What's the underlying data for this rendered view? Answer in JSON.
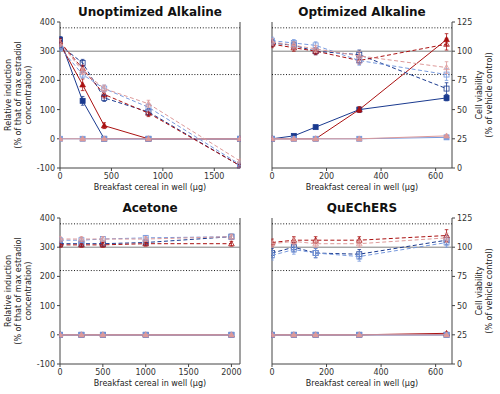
{
  "chart_data": [
    {
      "type": "line",
      "title": "Unoptimized Alkaline",
      "xlabel": "Breakfast cereal in well (μg)",
      "ylabel": "Relative induction\n(% of that of max estradiol concentration)",
      "x": [
        0,
        220,
        430,
        860,
        1750
      ],
      "xlim": [
        0,
        1750
      ],
      "xticks": [
        0,
        500,
        1000,
        1500
      ],
      "ylim": [
        -100,
        400
      ],
      "yticks": [
        -100,
        0,
        100,
        200,
        300,
        400
      ],
      "y2lim": [
        0,
        125
      ],
      "reference_lines": [
        {
          "value": 100,
          "axis": "y2",
          "line_style": "solid",
          "color": "gray"
        },
        {
          "value": 120,
          "axis": "y2",
          "line_style": "dotted",
          "color": "black"
        },
        {
          "value": 80,
          "axis": "y2",
          "line_style": "dotted",
          "color": "black"
        }
      ],
      "series": [
        {
          "color": "#1a3a8f",
          "marker": "square",
          "line_style": "solid",
          "values": [
            340,
            130,
            0,
            0,
            0
          ],
          "errors": [
            10,
            15,
            2,
            1,
            1
          ]
        },
        {
          "color": "#aa1111",
          "marker": "triangle",
          "line_style": "solid",
          "values": [
            325,
            185,
            45,
            0,
            0
          ],
          "errors": [
            10,
            20,
            10,
            1,
            1
          ]
        },
        {
          "color": "#7799dd",
          "marker": "square",
          "line_style": "solid",
          "values": [
            0,
            0,
            0,
            0,
            0
          ],
          "errors": [
            1,
            1,
            1,
            1,
            1
          ]
        },
        {
          "color": "#dd9999",
          "marker": "triangle",
          "line_style": "solid",
          "values": [
            0,
            0,
            0,
            0,
            0
          ],
          "errors": [
            1,
            1,
            1,
            1,
            1
          ]
        },
        {
          "color": "#1a3a8f",
          "marker": "open-square",
          "line_style": "dashed",
          "axis": "y2",
          "values": [
            105,
            90,
            60,
            48,
            2
          ],
          "errors": [
            3,
            3,
            3,
            3,
            1
          ]
        },
        {
          "color": "#aa1111",
          "marker": "open-triangle",
          "line_style": "dashed",
          "axis": "y2",
          "values": [
            108,
            85,
            63,
            47,
            2
          ],
          "errors": [
            3,
            3,
            3,
            3,
            1
          ]
        },
        {
          "color": "#7799dd",
          "marker": "open-square",
          "line_style": "dashed",
          "axis": "y2",
          "values": [
            103,
            80,
            68,
            52,
            3
          ],
          "errors": [
            3,
            3,
            3,
            3,
            1
          ]
        },
        {
          "color": "#dd9999",
          "marker": "open-triangle",
          "line_style": "dashed",
          "axis": "y2",
          "values": [
            107,
            83,
            68,
            55,
            6
          ],
          "errors": [
            3,
            3,
            3,
            3,
            1
          ]
        }
      ]
    },
    {
      "type": "line",
      "title": "Optimized Alkaline",
      "xlabel": "Breakfast cereal in well (μg)",
      "y2label": "Cell viability\n(% of vehicle control)",
      "x": [
        0,
        80,
        160,
        320,
        640
      ],
      "xlim": [
        0,
        660
      ],
      "xticks": [
        0,
        200,
        400,
        600
      ],
      "ylim": [
        -100,
        400
      ],
      "y2lim": [
        0,
        125
      ],
      "y2ticks": [
        0,
        25,
        50,
        75,
        100,
        125
      ],
      "reference_lines": [
        {
          "value": 100,
          "axis": "y2",
          "line_style": "solid",
          "color": "gray"
        },
        {
          "value": 120,
          "axis": "y2",
          "line_style": "dotted",
          "color": "black"
        },
        {
          "value": 80,
          "axis": "y2",
          "line_style": "dotted",
          "color": "black"
        }
      ],
      "series": [
        {
          "color": "#1a3a8f",
          "marker": "square",
          "line_style": "solid",
          "values": [
            0,
            10,
            40,
            100,
            140
          ],
          "errors": [
            1,
            3,
            5,
            8,
            10
          ]
        },
        {
          "color": "#aa1111",
          "marker": "triangle",
          "line_style": "solid",
          "values": [
            0,
            0,
            0,
            100,
            340
          ],
          "errors": [
            1,
            1,
            1,
            10,
            20
          ]
        },
        {
          "color": "#7799dd",
          "marker": "square",
          "line_style": "solid",
          "values": [
            0,
            0,
            0,
            0,
            5
          ],
          "errors": [
            1,
            1,
            1,
            1,
            2
          ]
        },
        {
          "color": "#dd9999",
          "marker": "triangle",
          "line_style": "solid",
          "values": [
            0,
            0,
            0,
            0,
            10
          ],
          "errors": [
            1,
            1,
            1,
            1,
            2
          ]
        },
        {
          "color": "#1a3a8f",
          "marker": "open-square",
          "line_style": "dashed",
          "axis": "y2",
          "values": [
            107,
            105,
            100,
            97,
            68
          ],
          "errors": [
            3,
            3,
            3,
            4,
            5
          ]
        },
        {
          "color": "#aa1111",
          "marker": "open-triangle",
          "line_style": "dashed",
          "axis": "y2",
          "values": [
            106,
            103,
            100,
            92,
            106
          ],
          "errors": [
            3,
            3,
            3,
            3,
            5
          ]
        },
        {
          "color": "#7799dd",
          "marker": "open-square",
          "line_style": "dashed",
          "axis": "y2",
          "values": [
            109,
            107,
            105,
            92,
            80
          ],
          "errors": [
            3,
            3,
            3,
            4,
            5
          ]
        },
        {
          "color": "#dd9999",
          "marker": "open-triangle",
          "line_style": "dashed",
          "axis": "y2",
          "values": [
            108,
            105,
            102,
            96,
            86
          ],
          "errors": [
            3,
            3,
            3,
            4,
            5
          ]
        }
      ]
    },
    {
      "type": "line",
      "title": "Acetone",
      "xlabel": "Breakfast cereal in well (μg)",
      "ylabel": "Relative induction\n(% of that of max estradiol concentration)",
      "x": [
        0,
        250,
        500,
        1000,
        2000
      ],
      "xlim": [
        0,
        2100
      ],
      "xticks": [
        0,
        500,
        1000,
        1500,
        2000
      ],
      "ylim": [
        -100,
        400
      ],
      "yticks": [
        -100,
        0,
        100,
        200,
        300,
        400
      ],
      "y2lim": [
        0,
        125
      ],
      "reference_lines": [
        {
          "value": 100,
          "axis": "y2",
          "line_style": "solid",
          "color": "gray"
        },
        {
          "value": 120,
          "axis": "y2",
          "line_style": "dotted",
          "color": "black"
        },
        {
          "value": 80,
          "axis": "y2",
          "line_style": "dotted",
          "color": "black"
        }
      ],
      "series": [
        {
          "color": "#1a3a8f",
          "marker": "square",
          "line_style": "solid",
          "values": [
            0,
            0,
            0,
            0,
            0
          ],
          "errors": [
            1,
            1,
            1,
            1,
            1
          ]
        },
        {
          "color": "#aa1111",
          "marker": "triangle",
          "line_style": "solid",
          "values": [
            0,
            0,
            0,
            0,
            0
          ],
          "errors": [
            1,
            1,
            1,
            1,
            1
          ]
        },
        {
          "color": "#7799dd",
          "marker": "square",
          "line_style": "solid",
          "values": [
            0,
            0,
            0,
            0,
            0
          ],
          "errors": [
            1,
            1,
            1,
            1,
            1
          ]
        },
        {
          "color": "#dd9999",
          "marker": "triangle",
          "line_style": "solid",
          "values": [
            0,
            0,
            0,
            0,
            0
          ],
          "errors": [
            1,
            1,
            1,
            1,
            1
          ]
        },
        {
          "color": "#1a3a8f",
          "marker": "open-square",
          "line_style": "dashed",
          "axis": "y2",
          "values": [
            103,
            103,
            103,
            104,
            109
          ],
          "errors": [
            2,
            2,
            2,
            2,
            2
          ]
        },
        {
          "color": "#aa1111",
          "marker": "open-triangle",
          "line_style": "dashed",
          "axis": "y2",
          "values": [
            102,
            102,
            102,
            103,
            103
          ],
          "errors": [
            2,
            2,
            2,
            2,
            2
          ]
        },
        {
          "color": "#7799dd",
          "marker": "open-square",
          "line_style": "dashed",
          "axis": "y2",
          "values": [
            106,
            106,
            107,
            108,
            109
          ],
          "errors": [
            2,
            2,
            2,
            2,
            2
          ]
        },
        {
          "color": "#dd9999",
          "marker": "open-triangle",
          "line_style": "dashed",
          "axis": "y2",
          "values": [
            107,
            107,
            107,
            107,
            109
          ],
          "errors": [
            2,
            2,
            2,
            2,
            2
          ]
        }
      ]
    },
    {
      "type": "line",
      "title": "QuEChERS",
      "xlabel": "Breakfast cereal in well (μg)",
      "y2label": "Cell viability\n(% of vehicle control)",
      "x": [
        0,
        80,
        160,
        320,
        640
      ],
      "xlim": [
        0,
        660
      ],
      "xticks": [
        0,
        200,
        400,
        600
      ],
      "ylim": [
        -100,
        400
      ],
      "y2lim": [
        0,
        125
      ],
      "y2ticks": [
        0,
        25,
        50,
        75,
        100,
        125
      ],
      "reference_lines": [
        {
          "value": 100,
          "axis": "y2",
          "line_style": "solid",
          "color": "gray"
        },
        {
          "value": 120,
          "axis": "y2",
          "line_style": "dotted",
          "color": "black"
        },
        {
          "value": 80,
          "axis": "y2",
          "line_style": "dotted",
          "color": "black"
        }
      ],
      "series": [
        {
          "color": "#1a3a8f",
          "marker": "square",
          "line_style": "solid",
          "values": [
            0,
            0,
            0,
            0,
            0
          ],
          "errors": [
            1,
            1,
            1,
            1,
            1
          ]
        },
        {
          "color": "#aa1111",
          "marker": "triangle",
          "line_style": "solid",
          "values": [
            0,
            0,
            0,
            0,
            5
          ],
          "errors": [
            1,
            1,
            1,
            1,
            3
          ]
        },
        {
          "color": "#7799dd",
          "marker": "square",
          "line_style": "solid",
          "values": [
            0,
            0,
            0,
            0,
            0
          ],
          "errors": [
            1,
            1,
            1,
            1,
            1
          ]
        },
        {
          "color": "#dd9999",
          "marker": "triangle",
          "line_style": "solid",
          "values": [
            0,
            0,
            0,
            0,
            0
          ],
          "errors": [
            1,
            1,
            1,
            1,
            1
          ]
        },
        {
          "color": "#1a3a8f",
          "marker": "open-square",
          "line_style": "dashed",
          "axis": "y2",
          "values": [
            95,
            100,
            95,
            94,
            106
          ],
          "errors": [
            4,
            4,
            4,
            4,
            4
          ]
        },
        {
          "color": "#aa1111",
          "marker": "open-triangle",
          "line_style": "dashed",
          "axis": "y2",
          "values": [
            104,
            106,
            106,
            106,
            110
          ],
          "errors": [
            3,
            3,
            3,
            3,
            5
          ]
        },
        {
          "color": "#7799dd",
          "marker": "open-square",
          "line_style": "dashed",
          "axis": "y2",
          "values": [
            93,
            98,
            95,
            92,
            104
          ],
          "errors": [
            4,
            4,
            4,
            4,
            4
          ]
        },
        {
          "color": "#dd9999",
          "marker": "open-triangle",
          "line_style": "dashed",
          "axis": "y2",
          "values": [
            103,
            105,
            103,
            103,
            108
          ],
          "errors": [
            3,
            3,
            3,
            3,
            4
          ]
        }
      ]
    }
  ]
}
